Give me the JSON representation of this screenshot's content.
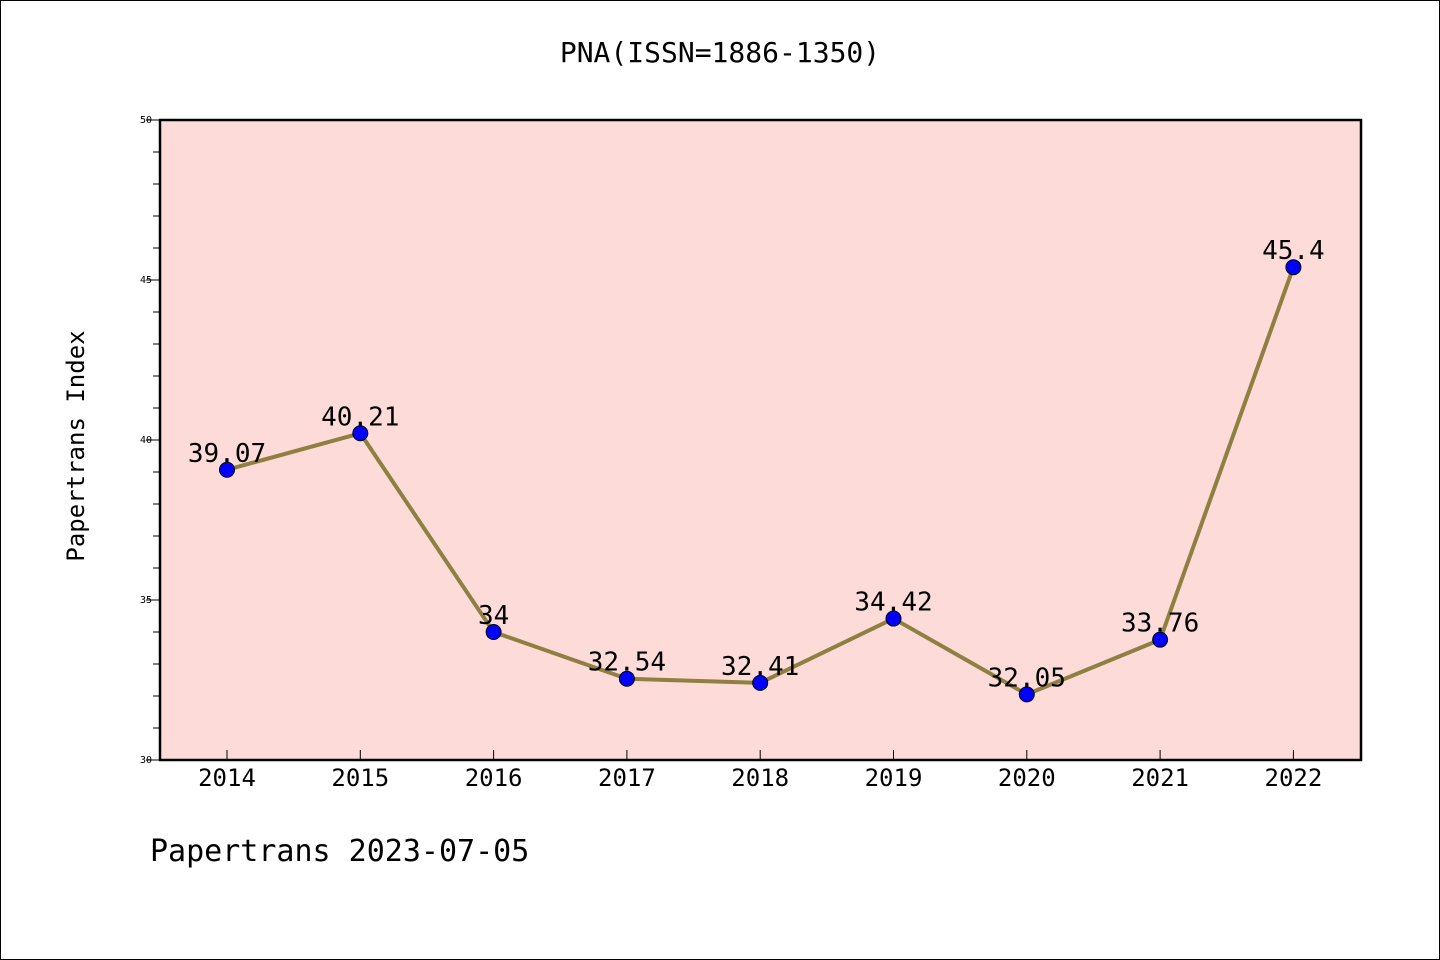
{
  "chart_data": {
    "type": "line",
    "title": "PNA(ISSN=1886-1350)",
    "ylabel": "Papertrans Index",
    "xlabel": "",
    "categories": [
      "2014",
      "2015",
      "2016",
      "2017",
      "2018",
      "2019",
      "2020",
      "2021",
      "2022"
    ],
    "series": [
      {
        "values": [
          39.07,
          40.21,
          34,
          32.54,
          32.41,
          34.42,
          32.05,
          33.76,
          45.4
        ],
        "data_labels": [
          "39.07",
          "40.21",
          "34",
          "32.54",
          "32.41",
          "34.42",
          "32.05",
          "33.76",
          "45.4"
        ]
      }
    ],
    "ylim": [
      30,
      50
    ],
    "y_major_ticks": [
      30,
      35,
      40,
      45,
      50
    ],
    "y_tick_labels": [
      "30",
      "35",
      "40",
      "45",
      "50"
    ],
    "y_minor_step": 1,
    "grid": false,
    "colors": {
      "plot_background": "#fddbd8",
      "line": "#8f7f40",
      "marker": "#0000ff"
    }
  },
  "footer": {
    "note": "Papertrans 2023-07-05"
  }
}
